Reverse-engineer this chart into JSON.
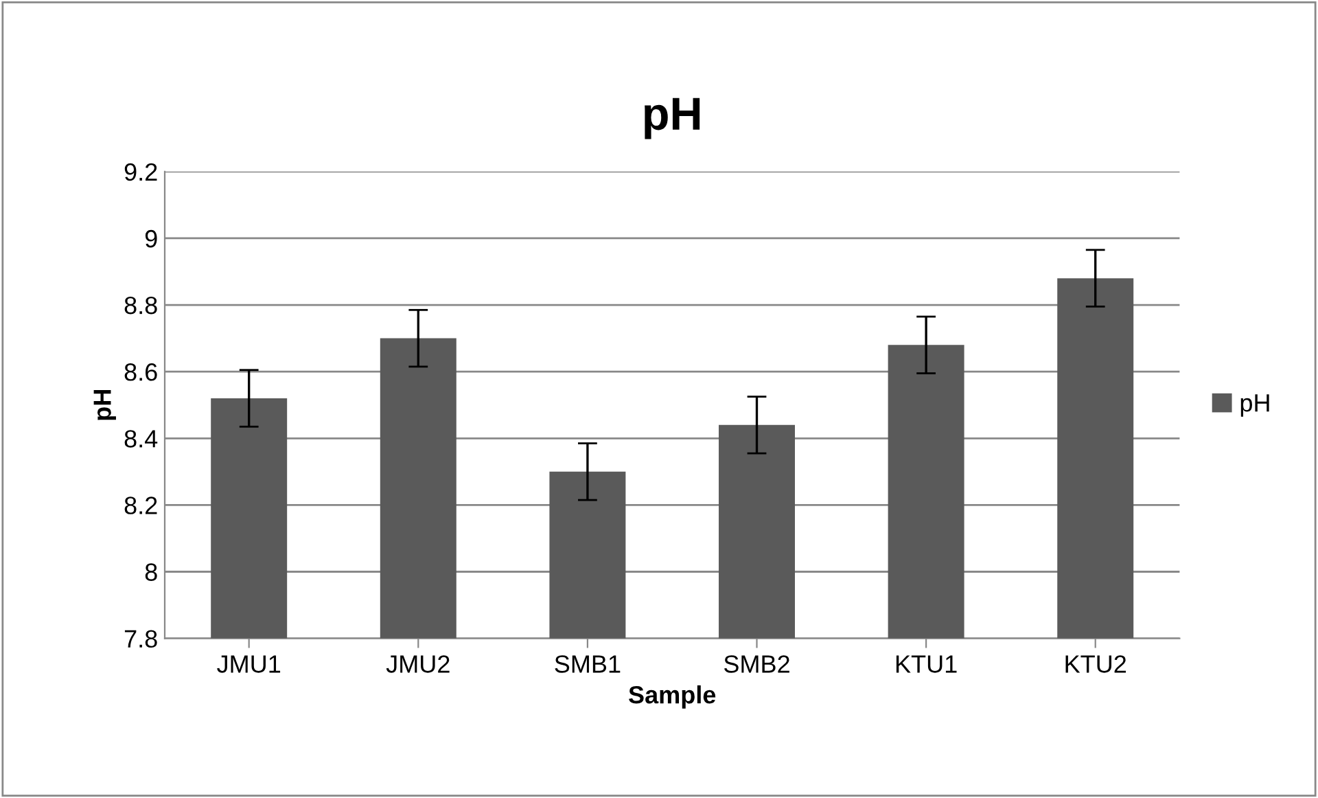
{
  "chart_data": {
    "type": "bar",
    "title": "pH",
    "xlabel": "Sample",
    "ylabel": "pH",
    "categories": [
      "JMU1",
      "JMU2",
      "SMB1",
      "SMB2",
      "KTU1",
      "KTU2"
    ],
    "series": [
      {
        "name": "pH",
        "color": "#5a5a5a",
        "values": [
          8.52,
          8.7,
          8.3,
          8.44,
          8.68,
          8.88
        ],
        "errors": [
          0.085,
          0.085,
          0.085,
          0.085,
          0.085,
          0.085
        ]
      }
    ],
    "ylim": [
      7.8,
      9.2
    ],
    "yticks": [
      7.8,
      8,
      8.2,
      8.4,
      8.6,
      8.8,
      9,
      9.2
    ],
    "grid": "y",
    "legend": "right"
  }
}
